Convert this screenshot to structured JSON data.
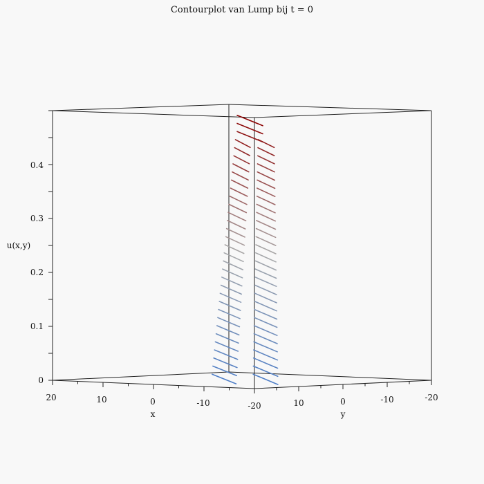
{
  "chart_data": {
    "type": "contour3d",
    "title": "Contourplot van Lump bij t = 0",
    "xlabel": "x",
    "ylabel": "y",
    "zlabel": "u(x,y)",
    "x_ticks": [
      "20",
      "10",
      "0",
      "-10",
      "-20"
    ],
    "y_ticks": [
      "10",
      "0",
      "-10",
      "-20"
    ],
    "z_ticks": [
      "0",
      "0.1",
      "0.2",
      "0.3",
      "0.4"
    ],
    "xlim": [
      -20,
      20
    ],
    "ylim": [
      -20,
      20
    ],
    "zlim": [
      0,
      0.5
    ],
    "contour_levels": [
      0.01,
      0.025,
      0.04,
      0.055,
      0.07,
      0.085,
      0.1,
      0.115,
      0.13,
      0.145,
      0.16,
      0.175,
      0.19,
      0.205,
      0.22,
      0.235,
      0.25,
      0.265,
      0.28,
      0.295,
      0.31,
      0.325,
      0.34,
      0.355,
      0.37,
      0.385,
      0.4,
      0.415,
      0.43,
      0.445,
      0.46,
      0.475,
      0.49
    ],
    "colormap": {
      "low": "#4a7cc8",
      "mid": "#a9a9a9",
      "high": "#8b0000"
    }
  }
}
